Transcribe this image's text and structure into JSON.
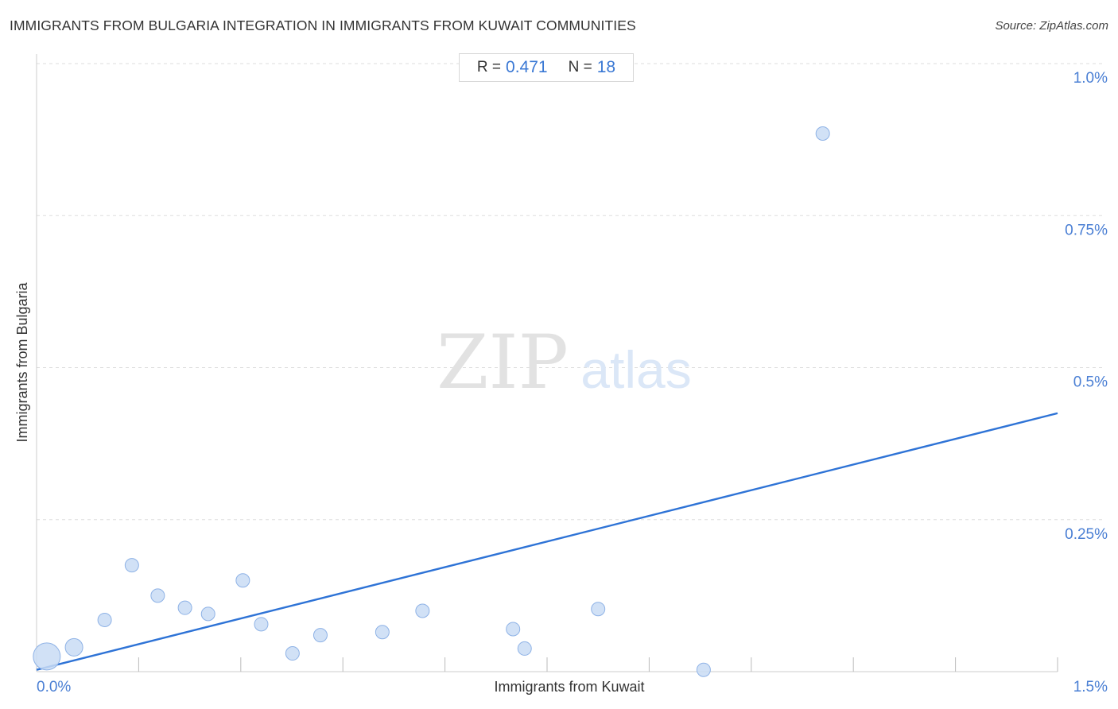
{
  "title": "IMMIGRANTS FROM BULGARIA INTEGRATION IN IMMIGRANTS FROM KUWAIT COMMUNITIES",
  "source": "Source: ZipAtlas.com",
  "stats": {
    "r_label": "R =",
    "r_value": "0.471",
    "n_label": "N =",
    "n_value": "18"
  },
  "watermark": {
    "zip": "ZIP",
    "atlas": "atlas"
  },
  "colors": {
    "point_fill": "#c9dcf5",
    "point_stroke": "#8eb2e6",
    "trend": "#2e73d6",
    "tick_label": "#4a7fd4",
    "grid": "#dddddd"
  },
  "chart_data": {
    "type": "scatter",
    "title": "IMMIGRANTS FROM BULGARIA INTEGRATION IN IMMIGRANTS FROM KUWAIT COMMUNITIES",
    "xlabel": "Immigrants from Kuwait",
    "ylabel": "Immigrants from Bulgaria",
    "xlim": [
      0,
      1.5
    ],
    "ylim": [
      0,
      1.0
    ],
    "x_tick_labels": [
      "0.0%",
      "1.5%"
    ],
    "y_ticks": [
      0.25,
      0.5,
      0.75,
      1.0
    ],
    "y_tick_labels": [
      "0.25%",
      "0.5%",
      "0.75%",
      "1.0%"
    ],
    "grid": true,
    "points": [
      {
        "x": 0.015,
        "y": 0.025,
        "size": "large"
      },
      {
        "x": 0.055,
        "y": 0.04,
        "size": "medium"
      },
      {
        "x": 0.1,
        "y": 0.085,
        "size": "small"
      },
      {
        "x": 0.14,
        "y": 0.175,
        "size": "small"
      },
      {
        "x": 0.178,
        "y": 0.125,
        "size": "small"
      },
      {
        "x": 0.218,
        "y": 0.105,
        "size": "small"
      },
      {
        "x": 0.252,
        "y": 0.095,
        "size": "small"
      },
      {
        "x": 0.303,
        "y": 0.15,
        "size": "small"
      },
      {
        "x": 0.33,
        "y": 0.078,
        "size": "small"
      },
      {
        "x": 0.376,
        "y": 0.03,
        "size": "small"
      },
      {
        "x": 0.417,
        "y": 0.06,
        "size": "small"
      },
      {
        "x": 0.508,
        "y": 0.065,
        "size": "small"
      },
      {
        "x": 0.567,
        "y": 0.1,
        "size": "small"
      },
      {
        "x": 0.7,
        "y": 0.07,
        "size": "small"
      },
      {
        "x": 0.717,
        "y": 0.038,
        "size": "small"
      },
      {
        "x": 0.825,
        "y": 0.103,
        "size": "small"
      },
      {
        "x": 0.98,
        "y": 0.003,
        "size": "small"
      },
      {
        "x": 1.155,
        "y": 0.885,
        "size": "small"
      }
    ],
    "trendline": {
      "x": [
        0.0,
        1.5
      ],
      "y": [
        0.003,
        0.425
      ]
    }
  }
}
